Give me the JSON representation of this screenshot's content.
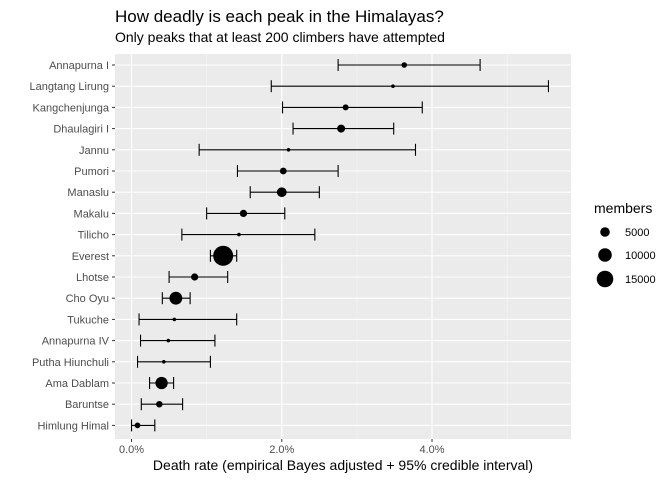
{
  "chart_data": {
    "type": "scatter",
    "title": "How deadly is each peak in the Himalayas?",
    "subtitle": "Only peaks that at least 200 climbers have attempted",
    "xlabel": "Death rate (empirical Bayes adjusted + 95% credible interval)",
    "ylabel": "",
    "xlim": [
      -0.0022,
      0.0585
    ],
    "x_ticks": [
      0.0,
      0.02,
      0.04
    ],
    "x_tick_labels": [
      "0.0%",
      "2.0%",
      "4.0%"
    ],
    "grid": true,
    "legend": {
      "title": "members",
      "placement": "right",
      "entries": [
        {
          "label": "5000",
          "size": 5000
        },
        {
          "label": "10000",
          "size": 10000
        },
        {
          "label": "15000",
          "size": 15000
        }
      ]
    },
    "points": [
      {
        "peak": "Annapurna I",
        "rate": 0.0363,
        "low": 0.0275,
        "high": 0.0464,
        "members": 1700
      },
      {
        "peak": "Langtang Lirung",
        "rate": 0.0348,
        "low": 0.0186,
        "high": 0.0555,
        "members": 300
      },
      {
        "peak": "Kangchenjunga",
        "rate": 0.0285,
        "low": 0.0201,
        "high": 0.0387,
        "members": 2000
      },
      {
        "peak": "Dhaulagiri I",
        "rate": 0.0279,
        "low": 0.0215,
        "high": 0.0349,
        "members": 3500
      },
      {
        "peak": "Jannu",
        "rate": 0.0209,
        "low": 0.009,
        "high": 0.0378,
        "members": 400
      },
      {
        "peak": "Pumori",
        "rate": 0.0202,
        "low": 0.0141,
        "high": 0.0275,
        "members": 2500
      },
      {
        "peak": "Manaslu",
        "rate": 0.02,
        "low": 0.0158,
        "high": 0.025,
        "members": 5200
      },
      {
        "peak": "Makalu",
        "rate": 0.0149,
        "low": 0.01,
        "high": 0.0204,
        "members": 2900
      },
      {
        "peak": "Tilicho",
        "rate": 0.0143,
        "low": 0.0067,
        "high": 0.0244,
        "members": 500
      },
      {
        "peak": "Everest",
        "rate": 0.0122,
        "low": 0.0105,
        "high": 0.014,
        "members": 21800
      },
      {
        "peak": "Lhotse",
        "rate": 0.0084,
        "low": 0.005,
        "high": 0.0128,
        "members": 2800
      },
      {
        "peak": "Cho Oyu",
        "rate": 0.0059,
        "low": 0.0041,
        "high": 0.0078,
        "members": 8900
      },
      {
        "peak": "Tukuche",
        "rate": 0.0057,
        "low": 0.001,
        "high": 0.014,
        "members": 300
      },
      {
        "peak": "Annapurna IV",
        "rate": 0.0049,
        "low": 0.0012,
        "high": 0.0111,
        "members": 600
      },
      {
        "peak": "Putha Hiunchuli",
        "rate": 0.0043,
        "low": 0.0008,
        "high": 0.0105,
        "members": 500
      },
      {
        "peak": "Ama Dablam",
        "rate": 0.004,
        "low": 0.0024,
        "high": 0.0056,
        "members": 8300
      },
      {
        "peak": "Baruntse",
        "rate": 0.0037,
        "low": 0.0013,
        "high": 0.0068,
        "members": 2300
      },
      {
        "peak": "Himlung Himal",
        "rate": 0.0008,
        "low": 0.0,
        "high": 0.0031,
        "members": 1800
      }
    ]
  }
}
